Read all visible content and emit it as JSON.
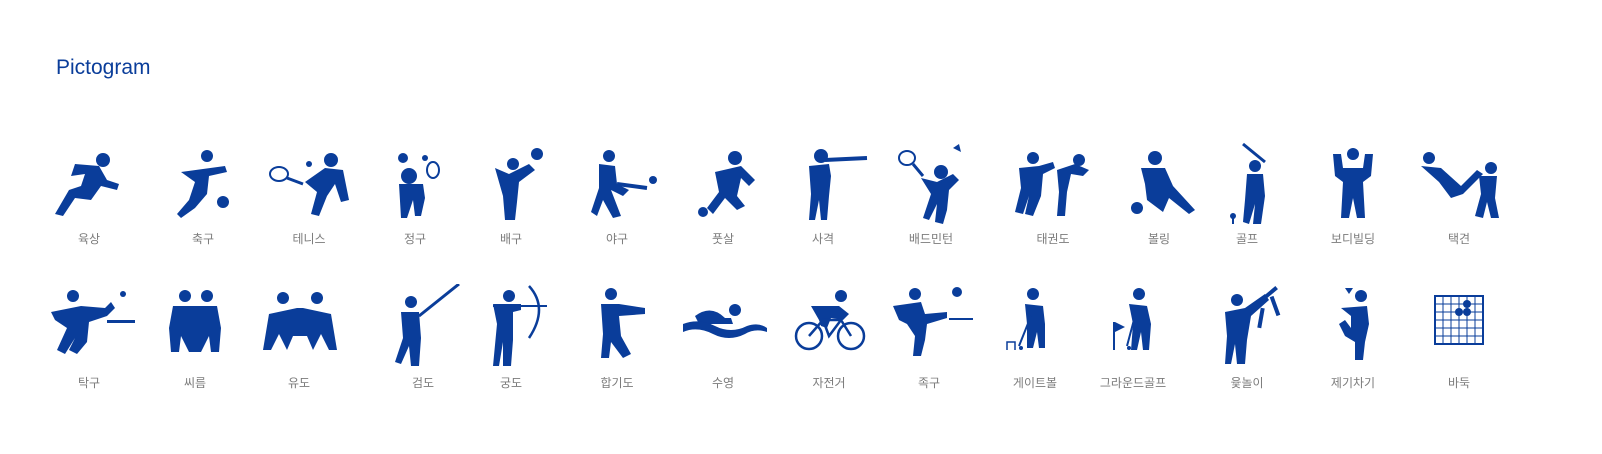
{
  "title": "Pictogram",
  "ink_color": "#0a3d9a",
  "label_color": "#7b7b7b",
  "row1": [
    {
      "label": "육상",
      "icon": "running-icon"
    },
    {
      "label": "축구",
      "icon": "soccer-icon"
    },
    {
      "label": "테니스",
      "icon": "tennis-icon"
    },
    {
      "label": "정구",
      "icon": "soft-tennis-icon"
    },
    {
      "label": "배구",
      "icon": "volleyball-icon"
    },
    {
      "label": "야구",
      "icon": "baseball-icon"
    },
    {
      "label": "풋살",
      "icon": "futsal-icon"
    },
    {
      "label": "사격",
      "icon": "shooting-icon"
    },
    {
      "label": "배드민턴",
      "icon": "badminton-icon"
    },
    {
      "label": "태권도",
      "icon": "taekwondo-icon"
    },
    {
      "label": "볼링",
      "icon": "bowling-icon"
    },
    {
      "label": "골프",
      "icon": "golf-icon"
    },
    {
      "label": "보디빌딩",
      "icon": "bodybuilding-icon"
    },
    {
      "label": "택견",
      "icon": "taekkyeon-icon"
    }
  ],
  "row2": [
    {
      "label": "탁구",
      "icon": "table-tennis-icon"
    },
    {
      "label": "씨름",
      "icon": "ssireum-icon"
    },
    {
      "label": "유도",
      "icon": "judo-icon"
    },
    {
      "label": "검도",
      "icon": "kendo-icon"
    },
    {
      "label": "궁도",
      "icon": "archery-icon"
    },
    {
      "label": "합기도",
      "icon": "hapkido-icon"
    },
    {
      "label": "수영",
      "icon": "swimming-icon"
    },
    {
      "label": "자전거",
      "icon": "cycling-icon"
    },
    {
      "label": "족구",
      "icon": "foot-volleyball-icon"
    },
    {
      "label": "게이트볼",
      "icon": "gateball-icon"
    },
    {
      "label": "그라운드골프",
      "icon": "ground-golf-icon"
    },
    {
      "label": "윷놀이",
      "icon": "yutnori-icon"
    },
    {
      "label": "제기차기",
      "icon": "jegichagi-icon"
    },
    {
      "label": "바둑",
      "icon": "baduk-icon"
    }
  ]
}
